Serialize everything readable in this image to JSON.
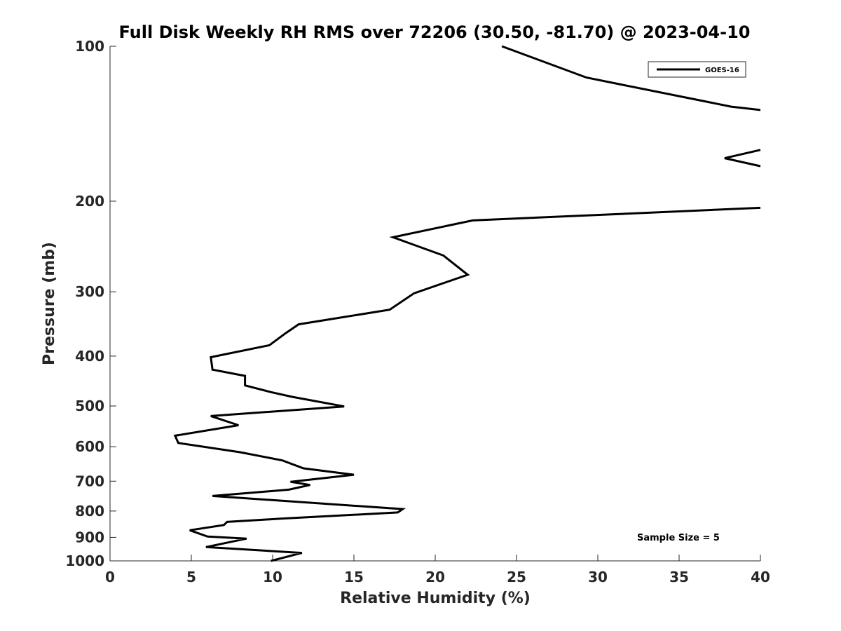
{
  "chart_data": {
    "type": "line",
    "title": "Full Disk Weekly RH RMS over 72206 (30.50, -81.70) @ 2023-04-10",
    "xlabel": "Relative Humidity (%)",
    "ylabel": "Pressure (mb)",
    "xlim": [
      0,
      40
    ],
    "ylim": [
      100,
      1000
    ],
    "y_scale": "log",
    "y_reversed": true,
    "xticks": [
      0,
      5,
      10,
      15,
      20,
      25,
      30,
      35,
      40
    ],
    "yticks": [
      100,
      200,
      300,
      400,
      500,
      600,
      700,
      800,
      900,
      1000
    ],
    "grid": false,
    "legend_position": "top-right",
    "series": [
      {
        "name": "GOES-16",
        "color": "#000000",
        "points": [
          [
            24.1,
            100
          ],
          [
            29.3,
            115
          ],
          [
            38.2,
            131
          ],
          [
            40.0,
            133
          ],
          [
            null,
            null
          ],
          [
            40.0,
            159
          ],
          [
            37.8,
            165
          ],
          [
            40.0,
            171
          ],
          [
            null,
            null
          ],
          [
            40.0,
            206
          ],
          [
            22.3,
            218
          ],
          [
            17.4,
            235
          ],
          [
            20.5,
            255
          ],
          [
            22.0,
            278
          ],
          [
            18.7,
            302
          ],
          [
            17.2,
            325
          ],
          [
            11.6,
            347
          ],
          [
            10.8,
            361
          ],
          [
            9.8,
            381
          ],
          [
            6.2,
            402
          ],
          [
            6.3,
            425
          ],
          [
            8.3,
            437
          ],
          [
            8.3,
            456
          ],
          [
            9.9,
            470
          ],
          [
            11.2,
            480
          ],
          [
            14.4,
            501
          ],
          [
            6.2,
            523
          ],
          [
            7.9,
            545
          ],
          [
            4.0,
            571
          ],
          [
            4.2,
            590
          ],
          [
            8.0,
            615
          ],
          [
            10.6,
            638
          ],
          [
            11.9,
            661
          ],
          [
            15.0,
            680
          ],
          [
            11.1,
            702
          ],
          [
            12.3,
            712
          ],
          [
            11.0,
            727
          ],
          [
            6.3,
            748
          ],
          [
            18.0,
            793
          ],
          [
            17.7,
            805
          ],
          [
            10.5,
            828
          ],
          [
            7.2,
            840
          ],
          [
            7.0,
            852
          ],
          [
            4.9,
            872
          ],
          [
            6.0,
            897
          ],
          [
            8.4,
            905
          ],
          [
            5.9,
            940
          ],
          [
            11.8,
            965
          ],
          [
            9.9,
            1000
          ]
        ]
      }
    ],
    "annotations": [
      {
        "text": "Sample Size = 5",
        "position": "bottom-right"
      }
    ]
  }
}
